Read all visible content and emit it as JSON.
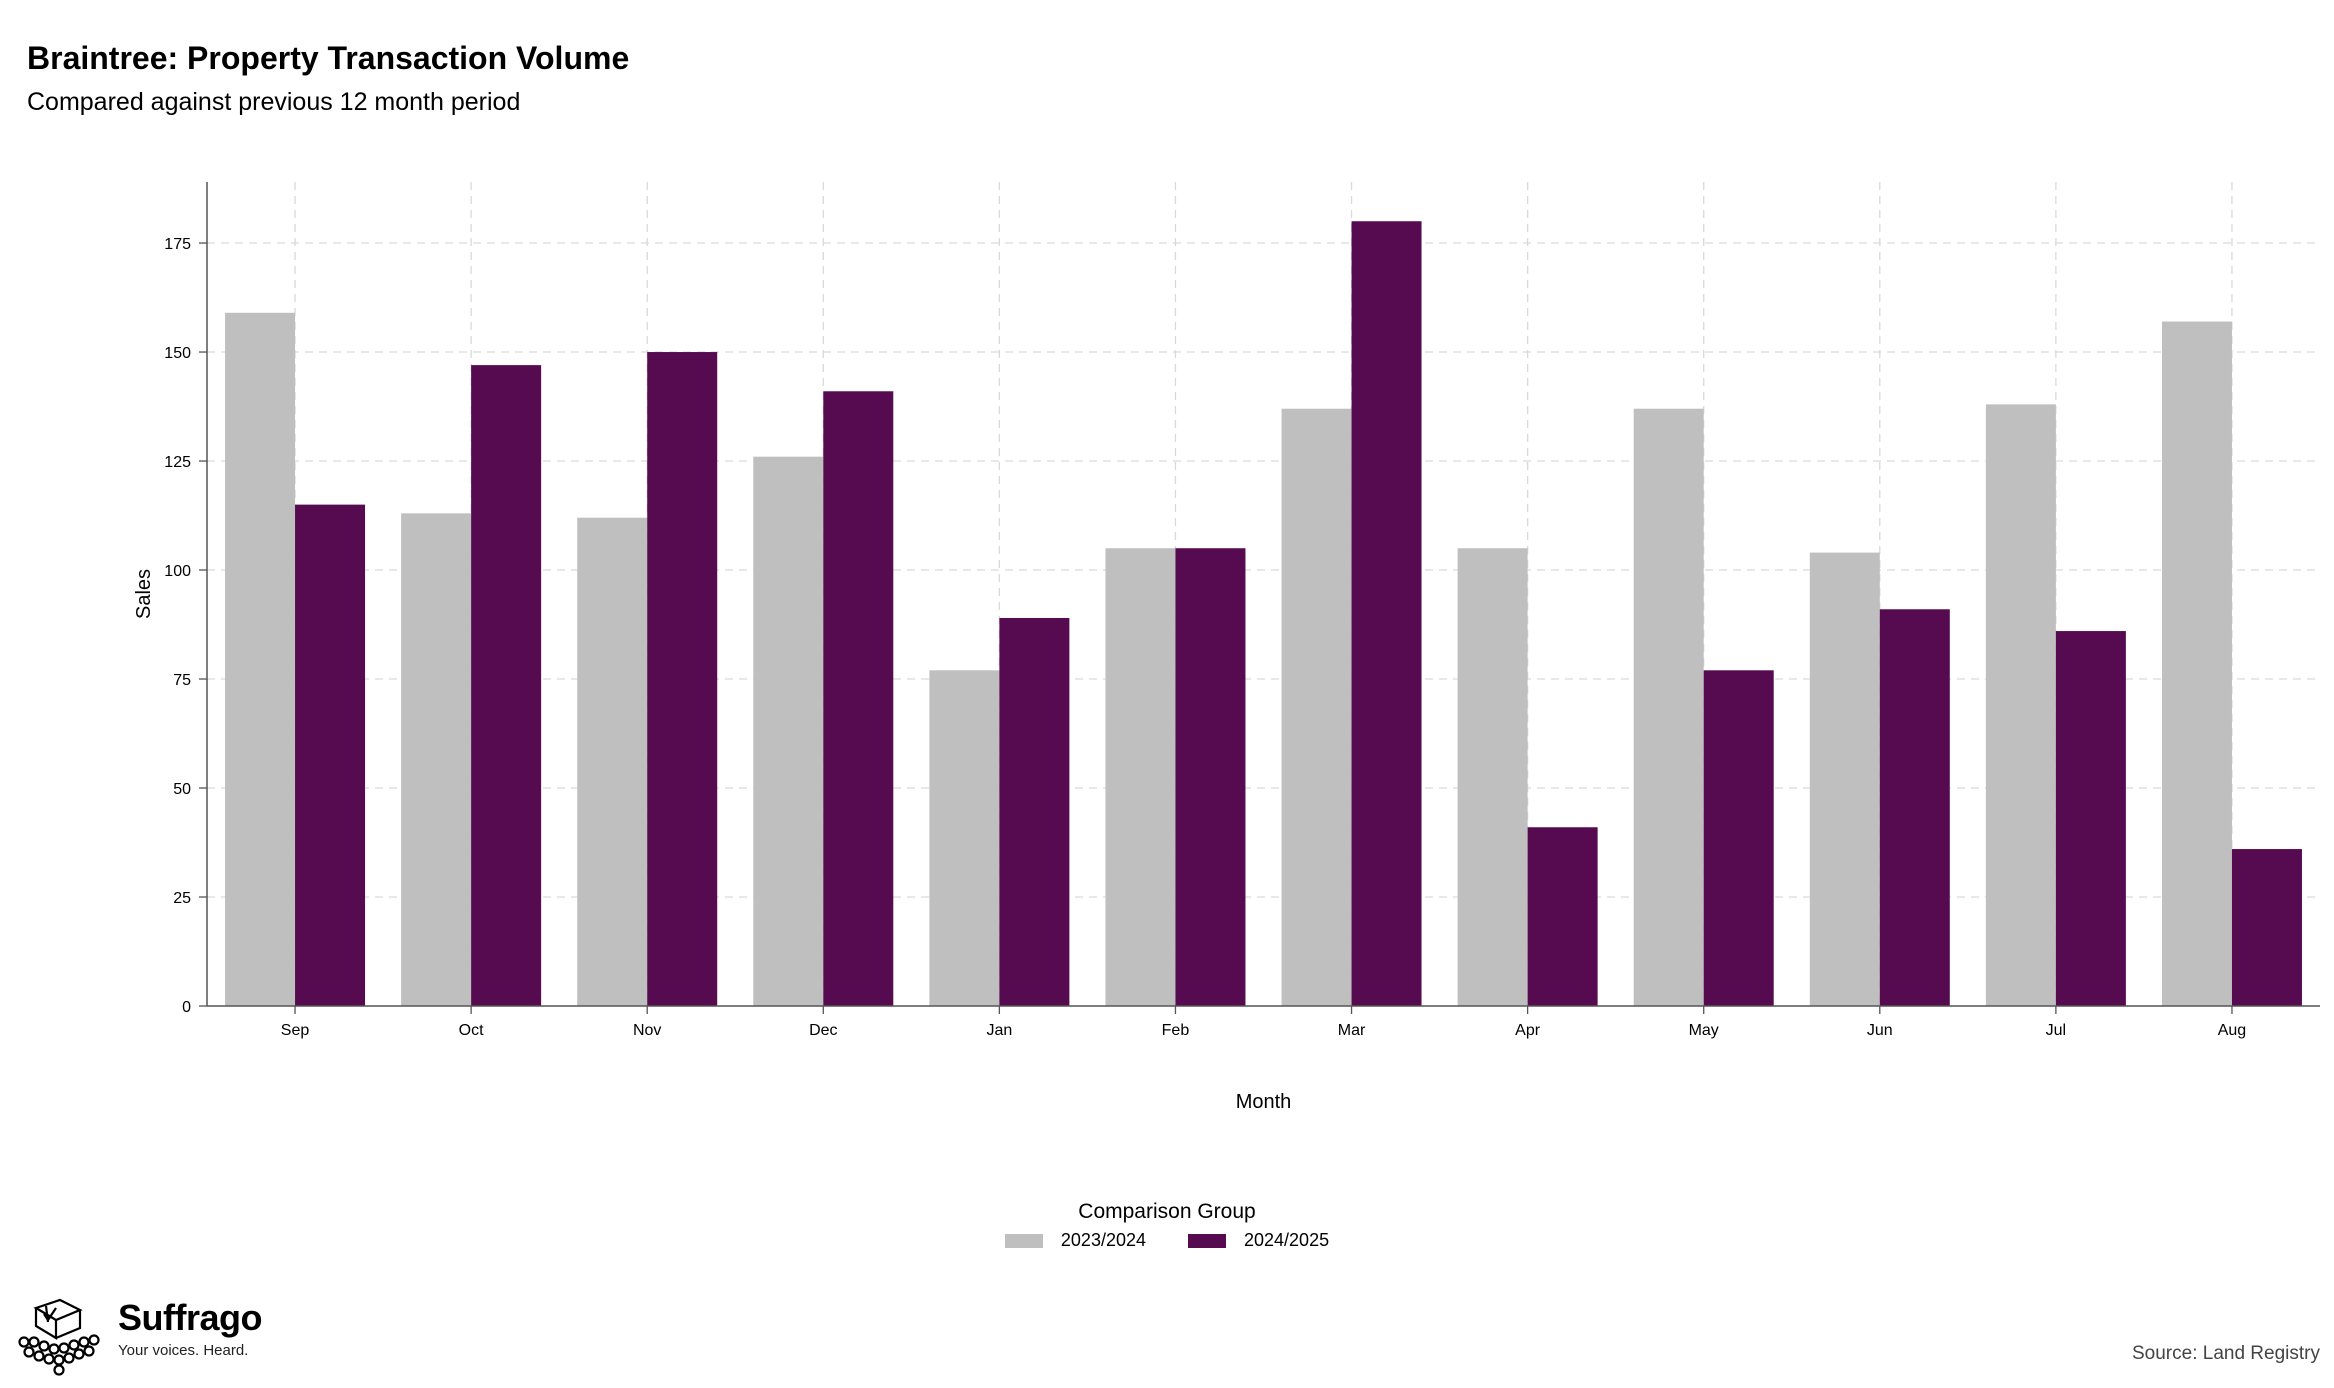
{
  "header": {
    "title": "Braintree: Property Transaction Volume",
    "subtitle": "Compared against previous 12 month period"
  },
  "chart_data": {
    "type": "bar",
    "title": "Braintree: Property Transaction Volume",
    "subtitle": "Compared against previous 12 month period",
    "xlabel": "Month",
    "ylabel": "Sales",
    "categories": [
      "Sep",
      "Oct",
      "Nov",
      "Dec",
      "Jan",
      "Feb",
      "Mar",
      "Apr",
      "May",
      "Jun",
      "Jul",
      "Aug"
    ],
    "series": [
      {
        "name": "2023/2024",
        "color": "#bfbfbf",
        "values": [
          159,
          113,
          112,
          126,
          77,
          105,
          137,
          105,
          137,
          104,
          138,
          157
        ]
      },
      {
        "name": "2024/2025",
        "color": "#560b51",
        "values": [
          115,
          147,
          150,
          141,
          89,
          105,
          180,
          41,
          77,
          91,
          86,
          36
        ]
      }
    ],
    "ylim": [
      0,
      189
    ],
    "yticks": [
      0,
      25,
      50,
      75,
      100,
      125,
      150,
      175
    ],
    "grid": true,
    "legend_position": "bottom",
    "legend_title": "Comparison Group"
  },
  "branding": {
    "logo_name": "Suffrago",
    "logo_tagline": "Your voices. Heard.",
    "logo_icon": "ballot-box-crowd-icon"
  },
  "source": "Source: Land Registry"
}
